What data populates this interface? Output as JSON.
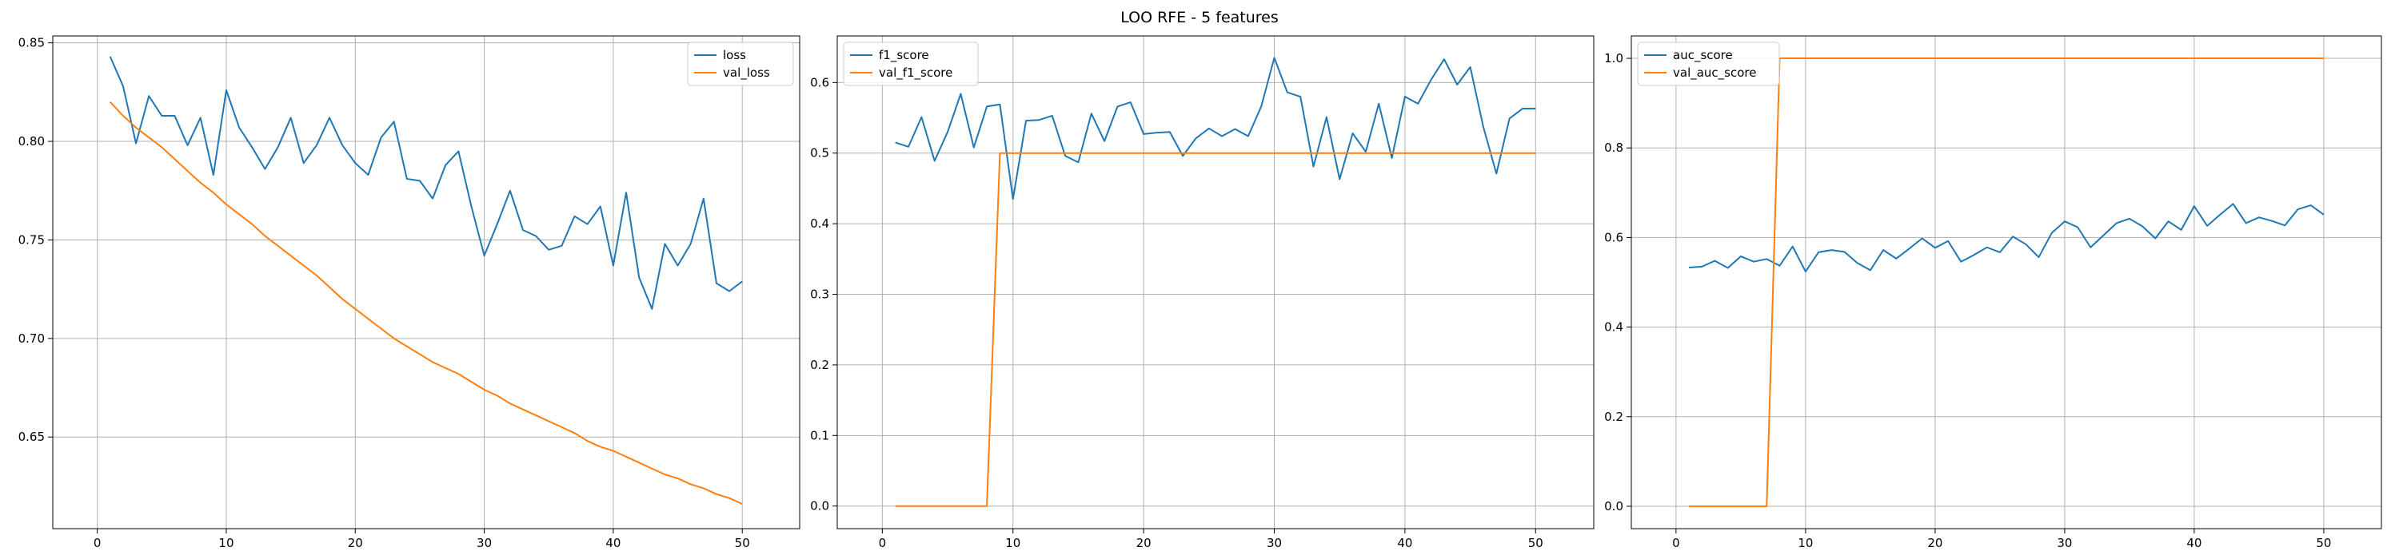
{
  "title": "LOO RFE - 5 features",
  "colors": {
    "series1": "#1f77b4",
    "series2": "#ff7f0e",
    "grid": "#b0b0b0",
    "axis": "#000000"
  },
  "chart_data": [
    {
      "type": "line",
      "grid": true,
      "legend_placement": "top-right",
      "xlim": [
        -3.45,
        54.45
      ],
      "ylim": [
        0.6035,
        0.8535
      ],
      "xticks": [
        0,
        10,
        20,
        30,
        40,
        50
      ],
      "yticks": [
        0.65,
        0.7,
        0.75,
        0.8,
        0.85
      ],
      "xtick_labels": [
        "0",
        "10",
        "20",
        "30",
        "40",
        "50"
      ],
      "ytick_labels": [
        "0.65",
        "0.70",
        "0.75",
        "0.80",
        "0.85"
      ],
      "x": [
        1,
        2,
        3,
        4,
        5,
        6,
        7,
        8,
        9,
        10,
        11,
        12,
        13,
        14,
        15,
        16,
        17,
        18,
        19,
        20,
        21,
        22,
        23,
        24,
        25,
        26,
        27,
        28,
        29,
        30,
        31,
        32,
        33,
        34,
        35,
        36,
        37,
        38,
        39,
        40,
        41,
        42,
        43,
        44,
        45,
        46,
        47,
        48,
        49,
        50
      ],
      "series": [
        {
          "name": "loss",
          "values": [
            0.843,
            0.828,
            0.799,
            0.823,
            0.813,
            0.813,
            0.798,
            0.812,
            0.783,
            0.826,
            0.807,
            0.797,
            0.786,
            0.797,
            0.812,
            0.789,
            0.798,
            0.812,
            0.798,
            0.789,
            0.783,
            0.802,
            0.81,
            0.781,
            0.78,
            0.771,
            0.788,
            0.795,
            0.767,
            0.742,
            0.758,
            0.775,
            0.755,
            0.752,
            0.745,
            0.747,
            0.762,
            0.758,
            0.767,
            0.737,
            0.774,
            0.731,
            0.715,
            0.748,
            0.737,
            0.748,
            0.771,
            0.728,
            0.724,
            0.729
          ]
        },
        {
          "name": "val_loss",
          "values": [
            0.82,
            0.813,
            0.807,
            0.802,
            0.797,
            0.791,
            0.785,
            0.779,
            0.774,
            0.768,
            0.763,
            0.758,
            0.752,
            0.747,
            0.742,
            0.737,
            0.732,
            0.726,
            0.72,
            0.715,
            0.71,
            0.705,
            0.7,
            0.696,
            0.692,
            0.688,
            0.685,
            0.682,
            0.678,
            0.674,
            0.671,
            0.667,
            0.664,
            0.661,
            0.658,
            0.655,
            0.652,
            0.648,
            0.645,
            0.643,
            0.64,
            0.637,
            0.634,
            0.631,
            0.629,
            0.626,
            0.624,
            0.621,
            0.619,
            0.616
          ]
        }
      ]
    },
    {
      "type": "line",
      "grid": true,
      "legend_placement": "top-left",
      "xlim": [
        -3.45,
        54.45
      ],
      "ylim": [
        -0.032,
        0.666
      ],
      "xticks": [
        0,
        10,
        20,
        30,
        40,
        50
      ],
      "yticks": [
        0.0,
        0.1,
        0.2,
        0.3,
        0.4,
        0.5,
        0.6
      ],
      "xtick_labels": [
        "0",
        "10",
        "20",
        "30",
        "40",
        "50"
      ],
      "ytick_labels": [
        "0.0",
        "0.1",
        "0.2",
        "0.3",
        "0.4",
        "0.5",
        "0.6"
      ],
      "x": [
        1,
        2,
        3,
        4,
        5,
        6,
        7,
        8,
        9,
        10,
        11,
        12,
        13,
        14,
        15,
        16,
        17,
        18,
        19,
        20,
        21,
        22,
        23,
        24,
        25,
        26,
        27,
        28,
        29,
        30,
        31,
        32,
        33,
        34,
        35,
        36,
        37,
        38,
        39,
        40,
        41,
        42,
        43,
        44,
        45,
        46,
        47,
        48,
        49,
        50
      ],
      "series": [
        {
          "name": "f1_score",
          "values": [
            0.515,
            0.509,
            0.551,
            0.489,
            0.53,
            0.584,
            0.508,
            0.566,
            0.569,
            0.435,
            0.546,
            0.547,
            0.553,
            0.496,
            0.487,
            0.556,
            0.517,
            0.566,
            0.572,
            0.527,
            0.529,
            0.53,
            0.496,
            0.521,
            0.535,
            0.524,
            0.534,
            0.524,
            0.566,
            0.635,
            0.586,
            0.58,
            0.481,
            0.551,
            0.463,
            0.528,
            0.502,
            0.57,
            0.493,
            0.58,
            0.57,
            0.604,
            0.633,
            0.597,
            0.622,
            0.537,
            0.471,
            0.549,
            0.563,
            0.563
          ]
        },
        {
          "name": "val_f1_score",
          "values": [
            0,
            0,
            0,
            0,
            0,
            0,
            0,
            0,
            0.5,
            0.5,
            0.5,
            0.5,
            0.5,
            0.5,
            0.5,
            0.5,
            0.5,
            0.5,
            0.5,
            0.5,
            0.5,
            0.5,
            0.5,
            0.5,
            0.5,
            0.5,
            0.5,
            0.5,
            0.5,
            0.5,
            0.5,
            0.5,
            0.5,
            0.5,
            0.5,
            0.5,
            0.5,
            0.5,
            0.5,
            0.5,
            0.5,
            0.5,
            0.5,
            0.5,
            0.5,
            0.5,
            0.5,
            0.5,
            0.5,
            0.5
          ]
        }
      ]
    },
    {
      "type": "line",
      "grid": true,
      "legend_placement": "top-left",
      "xlim": [
        -3.45,
        54.45
      ],
      "ylim": [
        -0.05,
        1.05
      ],
      "xticks": [
        0,
        10,
        20,
        30,
        40,
        50
      ],
      "yticks": [
        0.0,
        0.2,
        0.4,
        0.6,
        0.8,
        1.0
      ],
      "xtick_labels": [
        "0",
        "10",
        "20",
        "30",
        "40",
        "50"
      ],
      "ytick_labels": [
        "0.0",
        "0.2",
        "0.4",
        "0.6",
        "0.8",
        "1.0"
      ],
      "x": [
        1,
        2,
        3,
        4,
        5,
        6,
        7,
        8,
        9,
        10,
        11,
        12,
        13,
        14,
        15,
        16,
        17,
        18,
        19,
        20,
        21,
        22,
        23,
        24,
        25,
        26,
        27,
        28,
        29,
        30,
        31,
        32,
        33,
        34,
        35,
        36,
        37,
        38,
        39,
        40,
        41,
        42,
        43,
        44,
        45,
        46,
        47,
        48,
        49,
        50
      ],
      "series": [
        {
          "name": "auc_score",
          "values": [
            0.533,
            0.535,
            0.548,
            0.532,
            0.558,
            0.546,
            0.552,
            0.537,
            0.58,
            0.524,
            0.567,
            0.572,
            0.568,
            0.543,
            0.527,
            0.572,
            0.553,
            0.575,
            0.598,
            0.577,
            0.592,
            0.546,
            0.561,
            0.578,
            0.567,
            0.602,
            0.585,
            0.556,
            0.61,
            0.636,
            0.623,
            0.578,
            0.605,
            0.632,
            0.642,
            0.625,
            0.598,
            0.636,
            0.617,
            0.67,
            0.626,
            0.651,
            0.675,
            0.632,
            0.645,
            0.637,
            0.627,
            0.663,
            0.672,
            0.651
          ]
        },
        {
          "name": "val_auc_score",
          "values": [
            0,
            0,
            0,
            0,
            0,
            0,
            0,
            1,
            1,
            1,
            1,
            1,
            1,
            1,
            1,
            1,
            1,
            1,
            1,
            1,
            1,
            1,
            1,
            1,
            1,
            1,
            1,
            1,
            1,
            1,
            1,
            1,
            1,
            1,
            1,
            1,
            1,
            1,
            1,
            1,
            1,
            1,
            1,
            1,
            1,
            1,
            1,
            1,
            1,
            1
          ]
        }
      ]
    }
  ]
}
